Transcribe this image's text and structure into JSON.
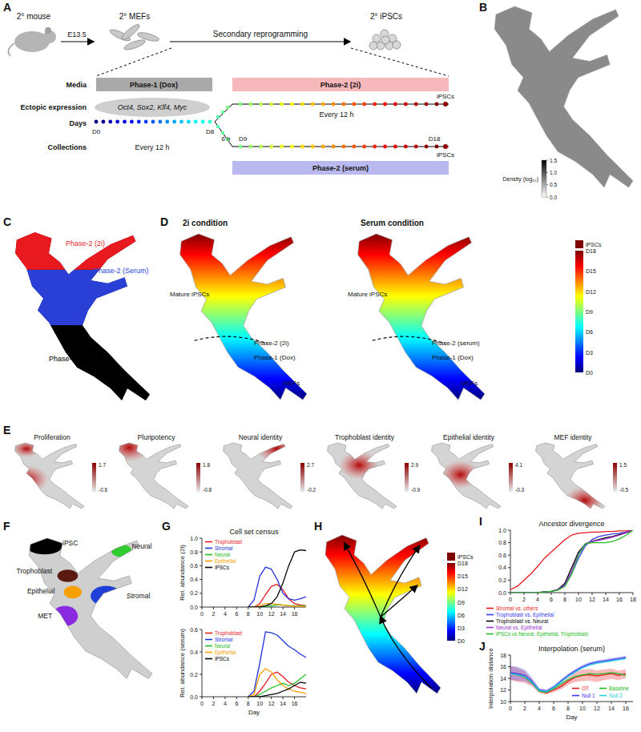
{
  "panel_labels": [
    "A",
    "B",
    "C",
    "D",
    "E",
    "F",
    "G",
    "H",
    "I",
    "J"
  ],
  "schematic": {
    "mouse": "2° mouse",
    "embryo_day": "E13.5",
    "mefs": "2° MEFs",
    "process": "Secondary reprogramming",
    "ipscs": "2° iPSCs",
    "rows": [
      "Media",
      "Ectopic expression",
      "Days",
      "Collections"
    ],
    "phase1": "Phase-1 (Dox)",
    "phase2_2i": "Phase-2 (2i)",
    "phase2_serum": "Phase-2 (serum)",
    "factors": "Oct4, Sox2, Klf4, Myc",
    "day_start": "D0",
    "day_switch": "D8",
    "day_first": "D9",
    "day_last": "D18",
    "interval_phase1": "Every 12 h",
    "interval_phase2": "Every 12 h",
    "delay": "6 h",
    "endpoint_2i": "iPSCs",
    "endpoint_serum": "iPSCs"
  },
  "density_map": {
    "colorbar_label": "Density (log₁₀)",
    "range": [
      0,
      1.5
    ],
    "ticks": [
      {
        "value": 0,
        "label": "0.0"
      },
      {
        "value": 0.5,
        "label": "0.5"
      },
      {
        "value": 1,
        "label": "1.0"
      },
      {
        "value": 1.5,
        "label": "1.5"
      }
    ]
  },
  "phase_map": {
    "labels": [
      {
        "text": "Phase-2 (2i)",
        "color": "#e8191f"
      },
      {
        "text": "Phase-2 (Serum)",
        "color": "#2a3fd6"
      },
      {
        "text": "Phase-1 (Dox)",
        "color": "#000000"
      }
    ]
  },
  "timecourse_maps": {
    "panels": [
      {
        "title": "2i condition",
        "labels": [
          "Mature iPSCs",
          "Phase-2 (2i)",
          "Phase-1 (Dox)",
          "MEFs"
        ]
      },
      {
        "title": "Serum condition",
        "labels": [
          "Mature iPSCs",
          "Phase-2 (serum)",
          "Phase-1 (Dox)",
          "MEFs"
        ]
      }
    ],
    "colorbar": [
      "iPSCs",
      "D18",
      "D15",
      "D12",
      "D9",
      "D6",
      "D3",
      "D0"
    ]
  },
  "signature_maps": [
    {
      "title": "Proliferation",
      "max": 1.7,
      "min": -0.6
    },
    {
      "title": "Pluripotency",
      "max": 1.8,
      "min": -0.8
    },
    {
      "title": "Neural identity",
      "max": 2.7,
      "min": -0.2
    },
    {
      "title": "Trophoblast identity",
      "max": 2.9,
      "min": -0.9
    },
    {
      "title": "Epithelial identity",
      "max": 4.1,
      "min": -0.3
    },
    {
      "title": "MEF identity",
      "max": 1.5,
      "min": -0.5
    }
  ],
  "cell_sets": [
    {
      "label": "iPSC",
      "color": "#000000"
    },
    {
      "label": "Neural",
      "color": "#2ecc2e"
    },
    {
      "label": "Trophoblast",
      "color": "#5a1a10"
    },
    {
      "label": "Epithelial",
      "color": "#f5a000"
    },
    {
      "label": "Stromal",
      "color": "#1f3fd6"
    },
    {
      "label": "MET",
      "color": "#8a2be2"
    }
  ],
  "trajectory_map": {
    "colorbar": [
      "iPSCs",
      "D18",
      "D15",
      "D12",
      "D9",
      "D6",
      "D3",
      "D0"
    ]
  },
  "chart_data": [
    {
      "type": "line",
      "title": "Cell set census",
      "y_label": "Rel. abundance (2i)",
      "legend": "top left",
      "x": [
        8,
        9,
        10,
        11,
        12,
        13,
        14,
        15,
        16,
        17,
        18
      ],
      "xlim": [
        0,
        18
      ],
      "xticks": [
        0,
        2,
        4,
        6,
        8,
        10,
        12,
        14,
        16
      ],
      "ylim": [
        0,
        1
      ],
      "yticks": [
        {
          "value": 0,
          "label": "0.0"
        },
        {
          "value": 0.2,
          "label": "0.2"
        },
        {
          "value": 0.4,
          "label": "0.4"
        },
        {
          "value": 0.6,
          "label": "0.6"
        },
        {
          "value": 0.8,
          "label": "0.8"
        },
        {
          "value": 1,
          "label": "1.0"
        }
      ],
      "series": [
        {
          "name": "Trophoblast",
          "color": "#e8191f",
          "values": [
            0,
            0,
            0.05,
            0.18,
            0.3,
            0.33,
            0.25,
            0.12,
            0.05,
            0.03,
            0.02
          ]
        },
        {
          "name": "Stromal",
          "color": "#2233dd",
          "values": [
            0,
            0.1,
            0.45,
            0.58,
            0.55,
            0.4,
            0.2,
            0.12,
            0.1,
            0.12,
            0.15
          ]
        },
        {
          "name": "Neural",
          "color": "#22bb22",
          "values": [
            0,
            0,
            0,
            0.01,
            0.02,
            0.03,
            0.03,
            0.02,
            0.02,
            0.02,
            0.02
          ]
        },
        {
          "name": "Epithelial",
          "color": "#f5a000",
          "values": [
            0,
            0,
            0.02,
            0.05,
            0.05,
            0.04,
            0.03,
            0.02,
            0.01,
            0.01,
            0.01
          ]
        },
        {
          "name": "iPSCs",
          "color": "#000000",
          "values": [
            0,
            0,
            0,
            0.02,
            0.05,
            0.15,
            0.35,
            0.6,
            0.8,
            0.83,
            0.82
          ]
        }
      ]
    },
    {
      "type": "line",
      "x_label": "Day",
      "y_label": "Rel. abundance (serum)",
      "legend": "top left",
      "x": [
        8,
        9,
        10,
        11,
        12,
        13,
        14,
        15,
        16,
        17,
        18
      ],
      "xlim": [
        0,
        18
      ],
      "xticks": [
        0,
        2,
        4,
        6,
        8,
        10,
        12,
        14,
        16
      ],
      "ylim": [
        0,
        0.6
      ],
      "yticks": [
        {
          "value": 0,
          "label": "0.0"
        },
        {
          "value": 0.2,
          "label": "0.2"
        },
        {
          "value": 0.4,
          "label": "0.4"
        },
        {
          "value": 0.6,
          "label": "0.6"
        }
      ],
      "series": [
        {
          "name": "Trophoblast",
          "color": "#e8191f",
          "values": [
            0,
            0,
            0.05,
            0.12,
            0.2,
            0.22,
            0.18,
            0.13,
            0.1,
            0.08,
            0.07
          ]
        },
        {
          "name": "Stromal",
          "color": "#2233dd",
          "values": [
            0,
            0.05,
            0.3,
            0.58,
            0.57,
            0.55,
            0.5,
            0.45,
            0.42,
            0.38,
            0.35
          ]
        },
        {
          "name": "Neural",
          "color": "#22bb22",
          "values": [
            0,
            0,
            0.02,
            0.05,
            0.08,
            0.1,
            0.12,
            0.1,
            0.12,
            0.16,
            0.2
          ]
        },
        {
          "name": "Epithelial",
          "color": "#f5a000",
          "values": [
            0,
            0.02,
            0.2,
            0.25,
            0.22,
            0.15,
            0.1,
            0.07,
            0.05,
            0.04,
            0.03
          ]
        },
        {
          "name": "iPSCs",
          "color": "#000000",
          "values": [
            0,
            0,
            0,
            0.01,
            0.02,
            0.03,
            0.05,
            0.07,
            0.1,
            0.13,
            0.12
          ]
        }
      ]
    },
    {
      "type": "line",
      "title": "Ancestor divergence",
      "legend": "below",
      "x": [
        0,
        1,
        2,
        3,
        4,
        5,
        6,
        7,
        8,
        9,
        10,
        11,
        12,
        13,
        14,
        15,
        16,
        17,
        18
      ],
      "xlim": [
        0,
        18
      ],
      "xticks": [
        0,
        2,
        4,
        6,
        8,
        10,
        12,
        14,
        16,
        18
      ],
      "ylim": [
        0,
        1
      ],
      "yticks": [
        {
          "value": 0,
          "label": "0.0"
        },
        {
          "value": 0.2,
          "label": "0.2"
        },
        {
          "value": 0.4,
          "label": "0.4"
        },
        {
          "value": 0.6,
          "label": "0.6"
        },
        {
          "value": 0.8,
          "label": "0.8"
        },
        {
          "value": 1,
          "label": "1.0"
        }
      ],
      "series": [
        {
          "name": "Stromal vs. others",
          "color": "#e8191f",
          "values": [
            0.05,
            0.1,
            0.2,
            0.3,
            0.42,
            0.55,
            0.65,
            0.75,
            0.85,
            0.92,
            0.95,
            0.96,
            0.97,
            0.97,
            0.98,
            0.98,
            0.99,
            0.99,
            1.0
          ]
        },
        {
          "name": "Trophoblast vs. Epithelial",
          "color": "#3a3aee",
          "values": [
            0,
            0,
            0,
            0,
            0,
            0.01,
            0.02,
            0.05,
            0.12,
            0.3,
            0.55,
            0.75,
            0.85,
            0.9,
            0.92,
            0.94,
            0.95,
            0.97,
            1.0
          ]
        },
        {
          "name": "Trophoblast vs. Neural",
          "color": "#000000",
          "values": [
            0,
            0,
            0,
            0,
            0,
            0.01,
            0.02,
            0.05,
            0.15,
            0.4,
            0.65,
            0.78,
            0.82,
            0.85,
            0.88,
            0.9,
            0.93,
            0.96,
            1.0
          ]
        },
        {
          "name": "Neural vs. Epithelial",
          "color": "#9b30d0",
          "values": [
            0,
            0,
            0,
            0,
            0,
            0.01,
            0.02,
            0.05,
            0.12,
            0.35,
            0.62,
            0.78,
            0.82,
            0.84,
            0.86,
            0.89,
            0.92,
            0.96,
            1.0
          ]
        },
        {
          "name": "iPSCs vs Neural, Epithelial, Trophoblast",
          "color": "#22bb22",
          "values": [
            0,
            0,
            0,
            0,
            0,
            0.01,
            0.02,
            0.04,
            0.1,
            0.3,
            0.6,
            0.78,
            0.8,
            0.8,
            0.8,
            0.82,
            0.86,
            0.92,
            1.0
          ]
        }
      ]
    },
    {
      "type": "line",
      "title": "Interpolation (serum)",
      "x_label": "Day",
      "y_label": "Interpolation distance",
      "legend": "bottom right",
      "x": [
        0,
        1,
        2,
        3,
        4,
        5,
        6,
        7,
        8,
        9,
        10,
        11,
        12,
        13,
        14,
        15,
        16
      ],
      "xlim": [
        0,
        17
      ],
      "xticks": [
        0,
        2,
        4,
        6,
        8,
        10,
        12,
        14,
        16
      ],
      "ylim": [
        10,
        18
      ],
      "yticks": [
        10,
        12,
        14,
        16,
        18
      ],
      "series": [
        {
          "name": "OT",
          "color": "#e8191f",
          "values": [
            14.9,
            14.6,
            14.2,
            13.2,
            11.8,
            11.5,
            12,
            12.6,
            13.5,
            14.2,
            14.5,
            14.6,
            14.4,
            14.6,
            14.8,
            14.5,
            14.8
          ],
          "error": [
            1.2,
            1.2,
            1.0,
            0.6,
            0.3,
            0.3,
            0.4,
            0.5,
            0.6,
            0.8,
            1.0,
            1.0,
            1.0,
            0.9,
            0.9,
            0.8,
            0.8
          ]
        },
        {
          "name": "Baseline",
          "color": "#22bb22",
          "values": [
            14.8,
            14.6,
            14.2,
            13.2,
            11.8,
            11.6,
            12.2,
            13,
            13.8,
            14.3,
            14.6,
            14.8,
            14.7,
            14.8,
            15,
            14.8,
            14.5
          ]
        },
        {
          "name": "Null 1",
          "color": "#3a3aee",
          "values": [
            15,
            14.8,
            14.5,
            13.5,
            12,
            11.8,
            12.5,
            13.5,
            14.5,
            15.3,
            16,
            16.5,
            16.8,
            17,
            17.2,
            17.4,
            17.6
          ],
          "error": [
            1.2,
            1.2,
            1.0,
            0.6,
            0.3,
            0.3,
            0.3,
            0.3,
            0.3,
            0.3,
            0.3,
            0.3,
            0.3,
            0.3,
            0.3,
            0.3,
            0.3
          ]
        },
        {
          "name": "Null 2",
          "color": "#20d0e0",
          "values": [
            14.8,
            14.6,
            14.3,
            13.3,
            11.9,
            11.7,
            12.4,
            13.3,
            14.3,
            15.1,
            15.8,
            16.3,
            16.6,
            16.8,
            17,
            17.2,
            17.4
          ]
        }
      ]
    }
  ]
}
